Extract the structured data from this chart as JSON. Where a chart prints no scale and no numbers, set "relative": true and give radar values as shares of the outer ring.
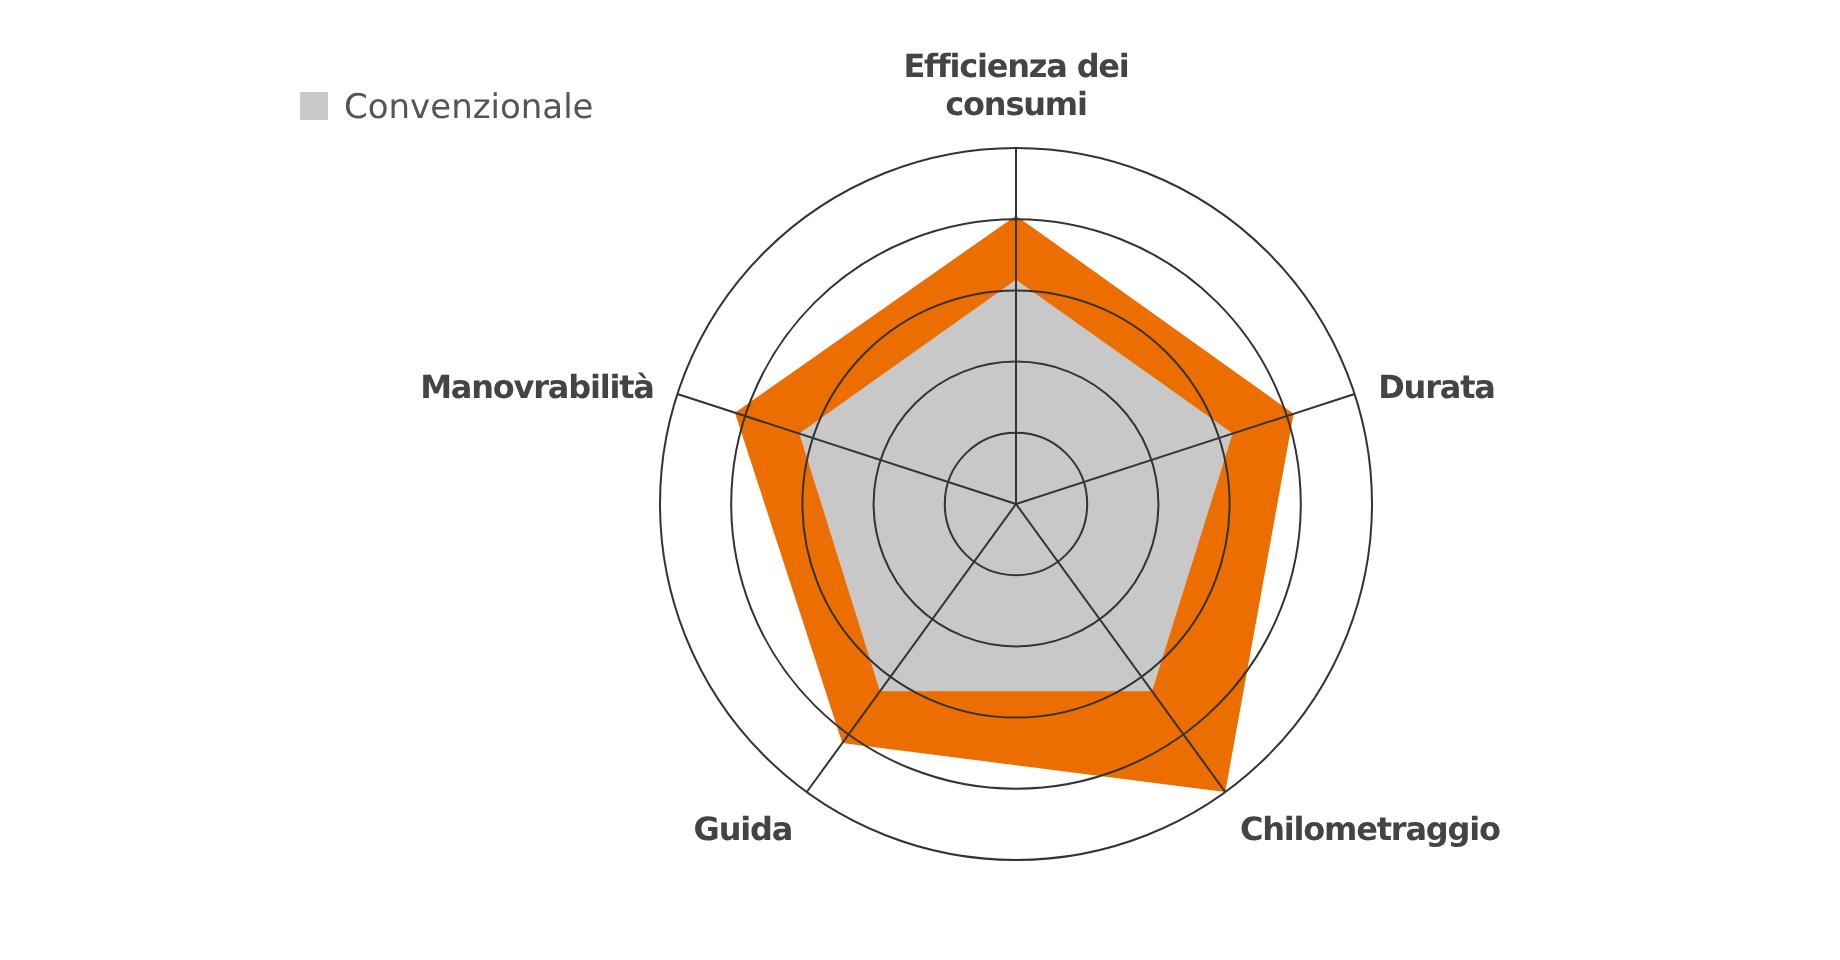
{
  "chart_data": {
    "type": "radar",
    "relative": true,
    "categories": [
      "Efficienza dei consumi",
      "Durata",
      "Chilometraggio",
      "Guida",
      "Manovrabilità"
    ],
    "series": [
      {
        "name": "Convenzionale",
        "color": "#c8c8c8",
        "values": [
          0.63,
          0.64,
          0.65,
          0.65,
          0.64
        ]
      },
      {
        "color": "#ec6e00",
        "values": [
          0.81,
          0.82,
          1.0,
          0.83,
          0.83
        ]
      }
    ],
    "grid": true,
    "legend": "top left"
  }
}
